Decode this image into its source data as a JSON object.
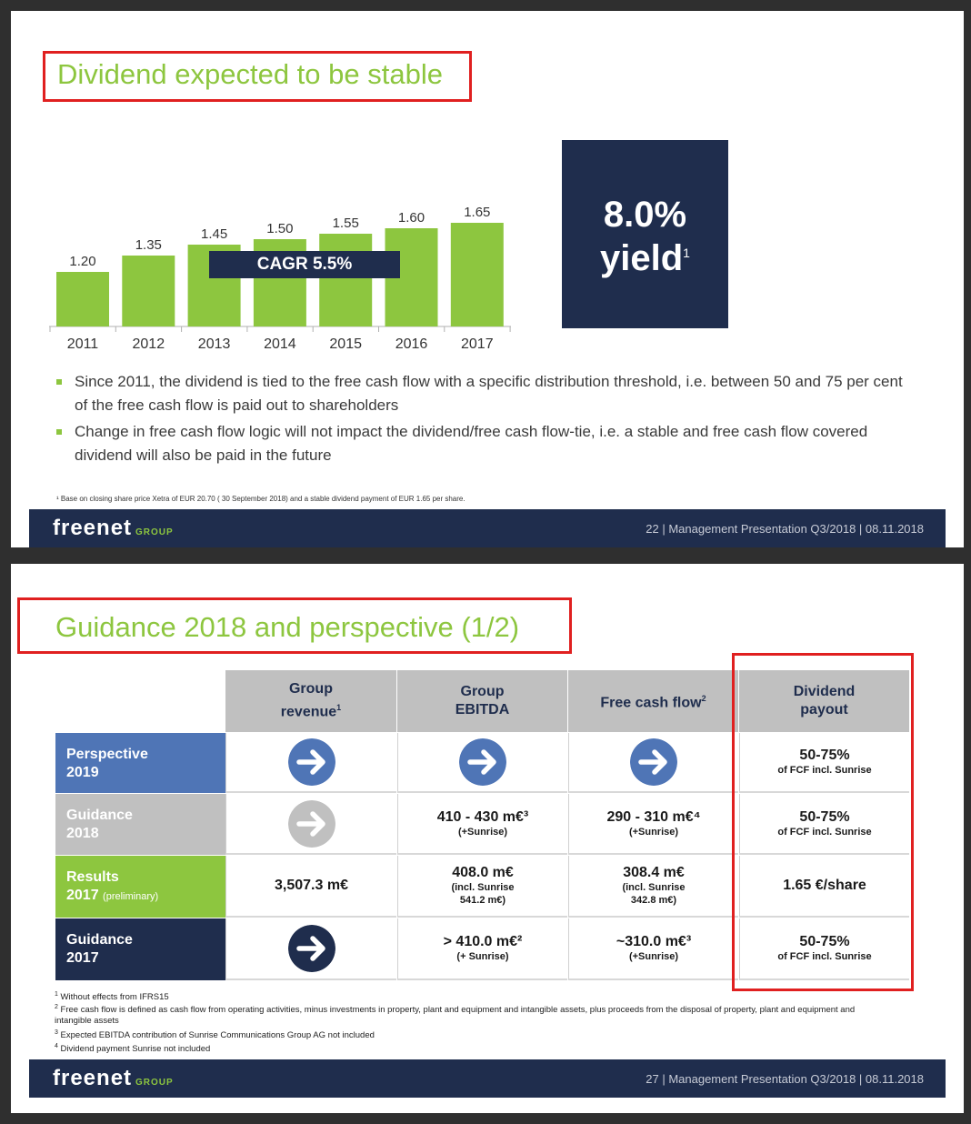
{
  "slide1": {
    "title": "Dividend expected to be stable",
    "cagr_label": "CAGR 5.5%",
    "yield_value": "8.0%",
    "yield_label": "yield",
    "yield_sup": "1",
    "bullets": [
      "Since 2011, the dividend is tied to the free cash flow with a specific distribution threshold, i.e. between 50 and 75 per cent of the free cash flow is paid out to shareholders",
      "Change in free cash flow logic will not impact the dividend/free cash flow-tie, i.e. a stable and free cash flow covered dividend will also be paid in the future"
    ],
    "footnote": "¹ Base on closing share price Xetra of EUR 20.70 ( 30 September 2018) and a stable dividend payment of EUR 1.65 per share.",
    "footer": {
      "logo": "freenet",
      "logo_sub": "GROUP",
      "text": "22  |  Management Presentation Q3/2018 |  08.11.2018"
    }
  },
  "chart_data": {
    "type": "bar",
    "categories": [
      "2011",
      "2012",
      "2013",
      "2014",
      "2015",
      "2016",
      "2017"
    ],
    "values": [
      1.2,
      1.35,
      1.45,
      1.5,
      1.55,
      1.6,
      1.65
    ],
    "value_labels": [
      "1.20",
      "1.35",
      "1.45",
      "1.50",
      "1.55",
      "1.60",
      "1.65"
    ],
    "title": "",
    "xlabel": "",
    "ylabel": "",
    "bar_color": "#8dc63f",
    "grid": false
  },
  "slide2": {
    "title": "Guidance 2018 and perspective (1/2)",
    "columns": [
      {
        "line1": "Group",
        "line2": "revenue",
        "sup": "1"
      },
      {
        "line1": "Group",
        "line2": "EBITDA",
        "sup": ""
      },
      {
        "line1": "Free cash flow",
        "line2": "",
        "sup": "2"
      },
      {
        "line1": "Dividend",
        "line2": "payout",
        "sup": ""
      }
    ],
    "rows": [
      {
        "label1": "Perspective",
        "label2": "2019",
        "label_note": "",
        "color": "#4f75b6",
        "cells": [
          {
            "icon": "arrow-right-icon",
            "icon_color": "#4f75b6"
          },
          {
            "icon": "arrow-right-icon",
            "icon_color": "#4f75b6"
          },
          {
            "icon": "arrow-right-icon",
            "icon_color": "#4f75b6"
          },
          {
            "main": "50-75%",
            "sub": "of FCF incl. Sunrise"
          }
        ]
      },
      {
        "label1": "Guidance",
        "label2": "2018",
        "label_note": "",
        "color": "#c0c0c0",
        "cells": [
          {
            "icon": "arrow-right-icon",
            "icon_color": "#c0c0c0"
          },
          {
            "main": "410 - 430 m€³",
            "sub": "(+Sunrise)"
          },
          {
            "main": "290 - 310 m€⁴",
            "sub": "(+Sunrise)"
          },
          {
            "main": "50-75%",
            "sub": "of FCF incl. Sunrise"
          }
        ]
      },
      {
        "label1": "Results",
        "label2": "2017",
        "label_note": "(preliminary)",
        "color": "#8dc63f",
        "cells": [
          {
            "main": "3,507.3 m€",
            "sub": ""
          },
          {
            "main": "408.0 m€",
            "sub": "(incl. Sunrise",
            "sub2": "541.2 m€)"
          },
          {
            "main": "308.4 m€",
            "sub": "(incl. Sunrise",
            "sub2": "342.8 m€)"
          },
          {
            "main": "1.65 €/share",
            "sub": ""
          }
        ]
      },
      {
        "label1": "Guidance",
        "label2": "2017",
        "label_note": "",
        "color": "#1f2d4d",
        "cells": [
          {
            "icon": "arrow-right-icon",
            "icon_color": "#1f2d4d"
          },
          {
            "main": "> 410.0 m€²",
            "sub": "(+ Sunrise)"
          },
          {
            "main": "~310.0 m€³",
            "sub": "(+Sunrise)"
          },
          {
            "main": "50-75%",
            "sub": "of FCF incl. Sunrise"
          }
        ]
      }
    ],
    "footnotes": [
      {
        "n": "1",
        "text": "Without effects from IFRS15"
      },
      {
        "n": "2",
        "text": "Free cash flow is defined as cash flow from operating activities, minus investments in property, plant and equipment and intangible assets, plus proceeds from the disposal of  property,  plant and equipment and intangible assets"
      },
      {
        "n": "3",
        "text": "Expected EBITDA contribution of Sunrise Communications Group AG not included"
      },
      {
        "n": "4",
        "text": "Dividend payment Sunrise not included"
      }
    ],
    "footer": {
      "logo": "freenet",
      "logo_sub": "GROUP",
      "text": "27  |  Management Presentation Q3/2018 |  08.11.2018"
    }
  }
}
